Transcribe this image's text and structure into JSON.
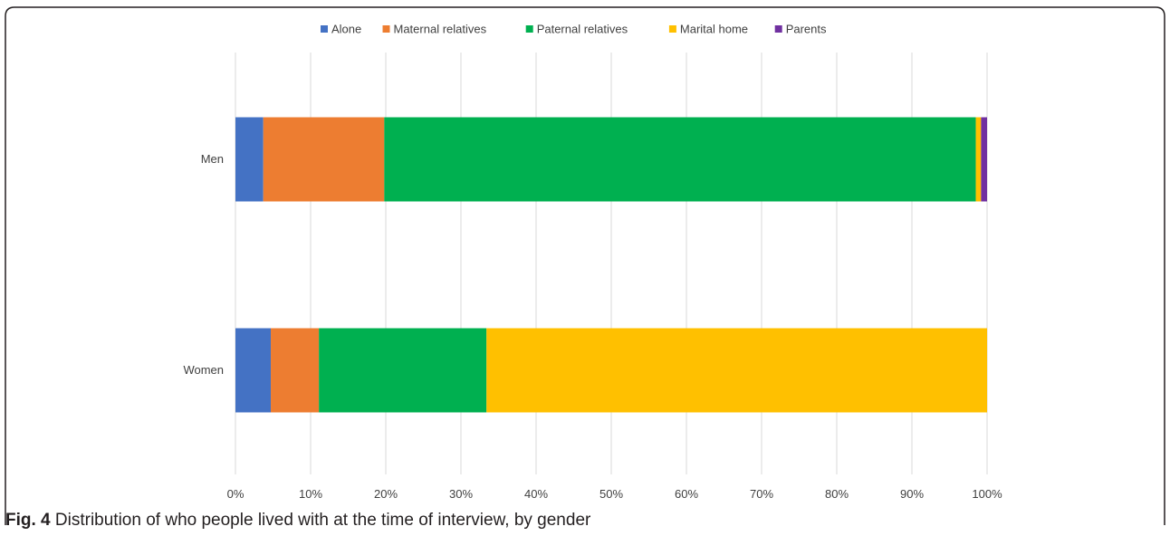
{
  "caption": {
    "label": "Fig. 4",
    "text": " Distribution of who people lived with at the time of interview, by gender"
  },
  "chart_data": {
    "type": "bar",
    "orientation": "horizontal",
    "stacked": true,
    "percent_stacked": true,
    "categories": [
      "Men",
      "Women"
    ],
    "series": [
      {
        "name": "Alone",
        "color": "#4472C4",
        "values": [
          3.7,
          4.7
        ]
      },
      {
        "name": "Maternal relatives",
        "color": "#ED7D31",
        "values": [
          16.1,
          6.4
        ]
      },
      {
        "name": "Paternal relatives",
        "color": "#00B050",
        "values": [
          78.7,
          22.3
        ]
      },
      {
        "name": "Marital home",
        "color": "#FFC000",
        "values": [
          0.7,
          66.6
        ]
      },
      {
        "name": "Parents",
        "color": "#7030A0",
        "values": [
          0.8,
          0.0
        ]
      }
    ],
    "xlim": [
      0,
      100
    ],
    "x_ticks": [
      "0%",
      "10%",
      "20%",
      "30%",
      "40%",
      "50%",
      "60%",
      "70%",
      "80%",
      "90%",
      "100%"
    ],
    "grid": "vertical",
    "legend_position": "top"
  }
}
